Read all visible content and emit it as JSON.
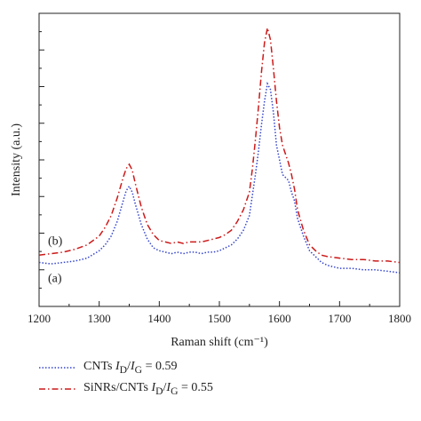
{
  "chart_data": {
    "type": "line",
    "xlabel": "Raman shift (cm⁻¹)",
    "ylabel": "Intensity (a.u.)",
    "xlim": [
      1200,
      1800
    ],
    "ylim": [
      0,
      1
    ],
    "xticks": [
      1200,
      1300,
      1400,
      1500,
      1600,
      1700,
      1800
    ],
    "x_tick_labels": [
      "1200",
      "1300",
      "1400",
      "1500",
      "1600",
      "1700",
      "1800"
    ],
    "y_tick_labels_shown": false,
    "grid": false,
    "legend_position": "bottom",
    "series": [
      {
        "id": "a",
        "curve_label": "(a)",
        "legend": {
          "prefix": "CNTs ",
          "ratio_label": "I",
          "sub_d": "D",
          "sub_g": "G",
          "value": " = 0.59"
        },
        "color": "#3344cc",
        "style": "dotted",
        "x": [
          1200,
          1220,
          1240,
          1260,
          1280,
          1300,
          1310,
          1320,
          1330,
          1340,
          1345,
          1350,
          1355,
          1360,
          1370,
          1380,
          1390,
          1400,
          1410,
          1420,
          1430,
          1440,
          1450,
          1460,
          1470,
          1480,
          1490,
          1500,
          1510,
          1520,
          1530,
          1540,
          1550,
          1555,
          1560,
          1565,
          1570,
          1575,
          1580,
          1585,
          1590,
          1595,
          1600,
          1605,
          1610,
          1615,
          1620,
          1625,
          1630,
          1640,
          1650,
          1660,
          1670,
          1680,
          1700,
          1720,
          1740,
          1760,
          1780,
          1800
        ],
        "y": [
          0.15,
          0.145,
          0.15,
          0.155,
          0.165,
          0.19,
          0.21,
          0.24,
          0.29,
          0.36,
          0.395,
          0.41,
          0.39,
          0.35,
          0.28,
          0.23,
          0.2,
          0.19,
          0.185,
          0.18,
          0.185,
          0.18,
          0.185,
          0.185,
          0.18,
          0.185,
          0.185,
          0.19,
          0.2,
          0.21,
          0.23,
          0.26,
          0.31,
          0.38,
          0.45,
          0.53,
          0.62,
          0.7,
          0.76,
          0.74,
          0.66,
          0.55,
          0.5,
          0.45,
          0.44,
          0.43,
          0.39,
          0.36,
          0.3,
          0.24,
          0.19,
          0.17,
          0.15,
          0.14,
          0.13,
          0.13,
          0.125,
          0.125,
          0.12,
          0.115
        ]
      },
      {
        "id": "b",
        "curve_label": "(b)",
        "legend": {
          "prefix": "SiNRs/CNTs ",
          "ratio_label": "I",
          "sub_d": "D",
          "sub_g": "G",
          "value": " = 0.55"
        },
        "color": "#cc1a1a",
        "style": "dashdot",
        "x": [
          1200,
          1220,
          1240,
          1260,
          1280,
          1300,
          1310,
          1320,
          1330,
          1340,
          1345,
          1350,
          1355,
          1360,
          1370,
          1380,
          1390,
          1400,
          1410,
          1420,
          1430,
          1440,
          1450,
          1460,
          1470,
          1480,
          1490,
          1500,
          1510,
          1520,
          1530,
          1540,
          1550,
          1555,
          1560,
          1565,
          1570,
          1575,
          1580,
          1585,
          1590,
          1595,
          1600,
          1605,
          1610,
          1615,
          1620,
          1625,
          1630,
          1640,
          1650,
          1660,
          1670,
          1680,
          1700,
          1720,
          1740,
          1760,
          1780,
          1800
        ],
        "y": [
          0.175,
          0.18,
          0.185,
          0.195,
          0.21,
          0.24,
          0.27,
          0.31,
          0.37,
          0.44,
          0.47,
          0.485,
          0.465,
          0.42,
          0.34,
          0.28,
          0.245,
          0.225,
          0.22,
          0.215,
          0.22,
          0.215,
          0.22,
          0.22,
          0.22,
          0.225,
          0.23,
          0.235,
          0.245,
          0.26,
          0.29,
          0.33,
          0.39,
          0.47,
          0.57,
          0.68,
          0.8,
          0.9,
          0.95,
          0.91,
          0.81,
          0.7,
          0.61,
          0.55,
          0.52,
          0.49,
          0.45,
          0.4,
          0.33,
          0.26,
          0.21,
          0.19,
          0.175,
          0.17,
          0.165,
          0.16,
          0.16,
          0.155,
          0.155,
          0.15
        ]
      }
    ]
  }
}
